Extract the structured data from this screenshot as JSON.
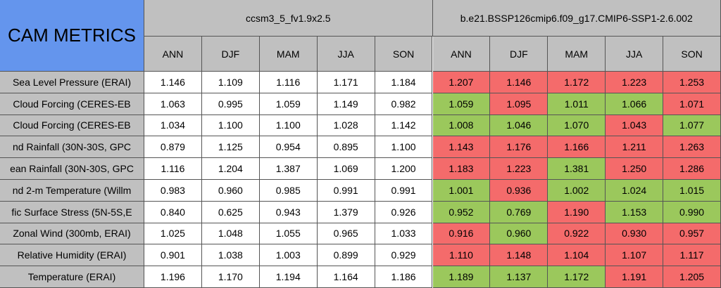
{
  "title": "CAM METRICS",
  "models": [
    {
      "name": "ccsm3_5_fv1.9x2.5",
      "seasons": [
        "ANN",
        "DJF",
        "MAM",
        "JJA",
        "SON"
      ]
    },
    {
      "name": "b.e21.BSSP126cmip6.f09_g17.CMIP6-SSP1-2.6.002",
      "seasons": [
        "ANN",
        "DJF",
        "MAM",
        "JJA",
        "SON"
      ]
    }
  ],
  "colors": {
    "r": "#f46b6b",
    "g": "#9bc85c",
    "w": "#ffffff"
  },
  "rows": [
    {
      "label": "Sea Level Pressure (ERAI)",
      "values": [
        "1.146",
        "1.109",
        "1.116",
        "1.171",
        "1.184",
        "1.207",
        "1.146",
        "1.172",
        "1.223",
        "1.253"
      ],
      "colors": [
        "w",
        "w",
        "w",
        "w",
        "w",
        "r",
        "r",
        "r",
        "r",
        "r"
      ]
    },
    {
      "label": "Cloud Forcing (CERES-EB",
      "values": [
        "1.063",
        "0.995",
        "1.059",
        "1.149",
        "0.982",
        "1.059",
        "1.095",
        "1.011",
        "1.066",
        "1.071"
      ],
      "colors": [
        "w",
        "w",
        "w",
        "w",
        "w",
        "g",
        "r",
        "g",
        "g",
        "r"
      ]
    },
    {
      "label": "Cloud Forcing (CERES-EB",
      "values": [
        "1.034",
        "1.100",
        "1.100",
        "1.028",
        "1.142",
        "1.008",
        "1.046",
        "1.070",
        "1.043",
        "1.077"
      ],
      "colors": [
        "w",
        "w",
        "w",
        "w",
        "w",
        "g",
        "g",
        "g",
        "r",
        "g"
      ]
    },
    {
      "label": "nd Rainfall (30N-30S, GPC",
      "values": [
        "0.879",
        "1.125",
        "0.954",
        "0.895",
        "1.100",
        "1.143",
        "1.176",
        "1.166",
        "1.211",
        "1.263"
      ],
      "colors": [
        "w",
        "w",
        "w",
        "w",
        "w",
        "r",
        "r",
        "r",
        "r",
        "r"
      ]
    },
    {
      "label": "ean Rainfall (30N-30S, GPC",
      "values": [
        "1.116",
        "1.204",
        "1.387",
        "1.069",
        "1.200",
        "1.183",
        "1.223",
        "1.381",
        "1.250",
        "1.286"
      ],
      "colors": [
        "w",
        "w",
        "w",
        "w",
        "w",
        "r",
        "r",
        "g",
        "r",
        "r"
      ]
    },
    {
      "label": "nd 2-m Temperature (Willm",
      "values": [
        "0.983",
        "0.960",
        "0.985",
        "0.991",
        "0.991",
        "1.001",
        "0.936",
        "1.002",
        "1.024",
        "1.015"
      ],
      "colors": [
        "w",
        "w",
        "w",
        "w",
        "w",
        "g",
        "r",
        "g",
        "g",
        "g"
      ]
    },
    {
      "label": "fic Surface Stress (5N-5S,E",
      "values": [
        "0.840",
        "0.625",
        "0.943",
        "1.379",
        "0.926",
        "0.952",
        "0.769",
        "1.190",
        "1.153",
        "0.990"
      ],
      "colors": [
        "w",
        "w",
        "w",
        "w",
        "w",
        "g",
        "g",
        "r",
        "g",
        "g"
      ]
    },
    {
      "label": "Zonal Wind (300mb, ERAI)",
      "values": [
        "1.025",
        "1.048",
        "1.055",
        "0.965",
        "1.033",
        "0.916",
        "0.960",
        "0.922",
        "0.930",
        "0.957"
      ],
      "colors": [
        "w",
        "w",
        "w",
        "w",
        "w",
        "r",
        "g",
        "r",
        "r",
        "r"
      ]
    },
    {
      "label": "Relative Humidity (ERAI)",
      "values": [
        "0.901",
        "1.038",
        "1.003",
        "0.899",
        "0.929",
        "1.110",
        "1.148",
        "1.104",
        "1.107",
        "1.117"
      ],
      "colors": [
        "w",
        "w",
        "w",
        "w",
        "w",
        "r",
        "r",
        "r",
        "r",
        "r"
      ]
    },
    {
      "label": "Temperature (ERAI)",
      "values": [
        "1.196",
        "1.170",
        "1.194",
        "1.164",
        "1.186",
        "1.189",
        "1.137",
        "1.172",
        "1.191",
        "1.205"
      ],
      "colors": [
        "w",
        "w",
        "w",
        "w",
        "w",
        "g",
        "g",
        "g",
        "r",
        "r"
      ]
    }
  ]
}
